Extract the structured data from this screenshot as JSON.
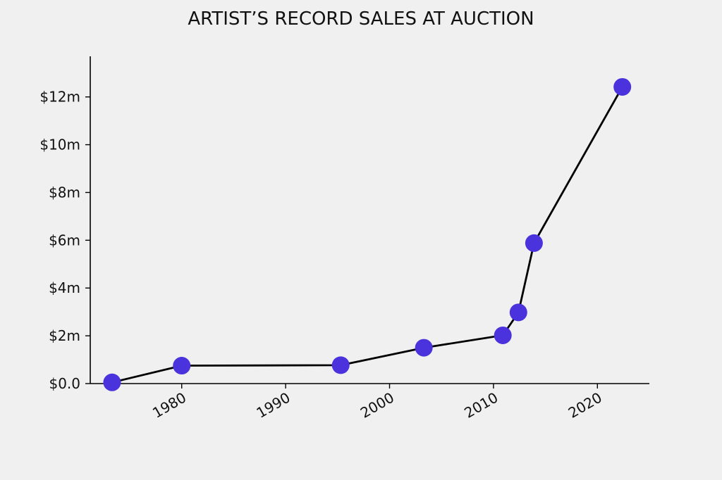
{
  "chart_data": {
    "type": "line",
    "title": "ARTIST’S RECORD SALES AT AUCTION",
    "xlabel": "",
    "ylabel": "",
    "x_unit": "year",
    "y_unit": "$m",
    "xlim": [
      1971.2,
      2025
    ],
    "ylim": [
      0,
      13.7
    ],
    "x_ticks": [
      {
        "value": 1980,
        "label": "1980"
      },
      {
        "value": 1990,
        "label": "1990"
      },
      {
        "value": 2000,
        "label": "2000"
      },
      {
        "value": 2010,
        "label": "2010"
      },
      {
        "value": 2020,
        "label": "2020"
      }
    ],
    "y_ticks": [
      {
        "value": 0,
        "label": "$0.0"
      },
      {
        "value": 2,
        "label": "$2m"
      },
      {
        "value": 4,
        "label": "$4m"
      },
      {
        "value": 6,
        "label": "$6m"
      },
      {
        "value": 8,
        "label": "$8m"
      },
      {
        "value": 10,
        "label": "$10m"
      },
      {
        "value": 12,
        "label": "$12m"
      }
    ],
    "series": [
      {
        "points": [
          {
            "x": 1973.3,
            "y": 0.05
          },
          {
            "x": 1980.0,
            "y": 0.75
          },
          {
            "x": 1995.3,
            "y": 0.77
          },
          {
            "x": 2003.3,
            "y": 1.5
          },
          {
            "x": 2010.9,
            "y": 2.02
          },
          {
            "x": 2012.4,
            "y": 2.98
          },
          {
            "x": 2013.9,
            "y": 5.88
          },
          {
            "x": 2022.4,
            "y": 12.42
          }
        ],
        "line_color": "#000000",
        "marker_color": "#4a32dc"
      }
    ],
    "grid": false,
    "legend": "none"
  }
}
